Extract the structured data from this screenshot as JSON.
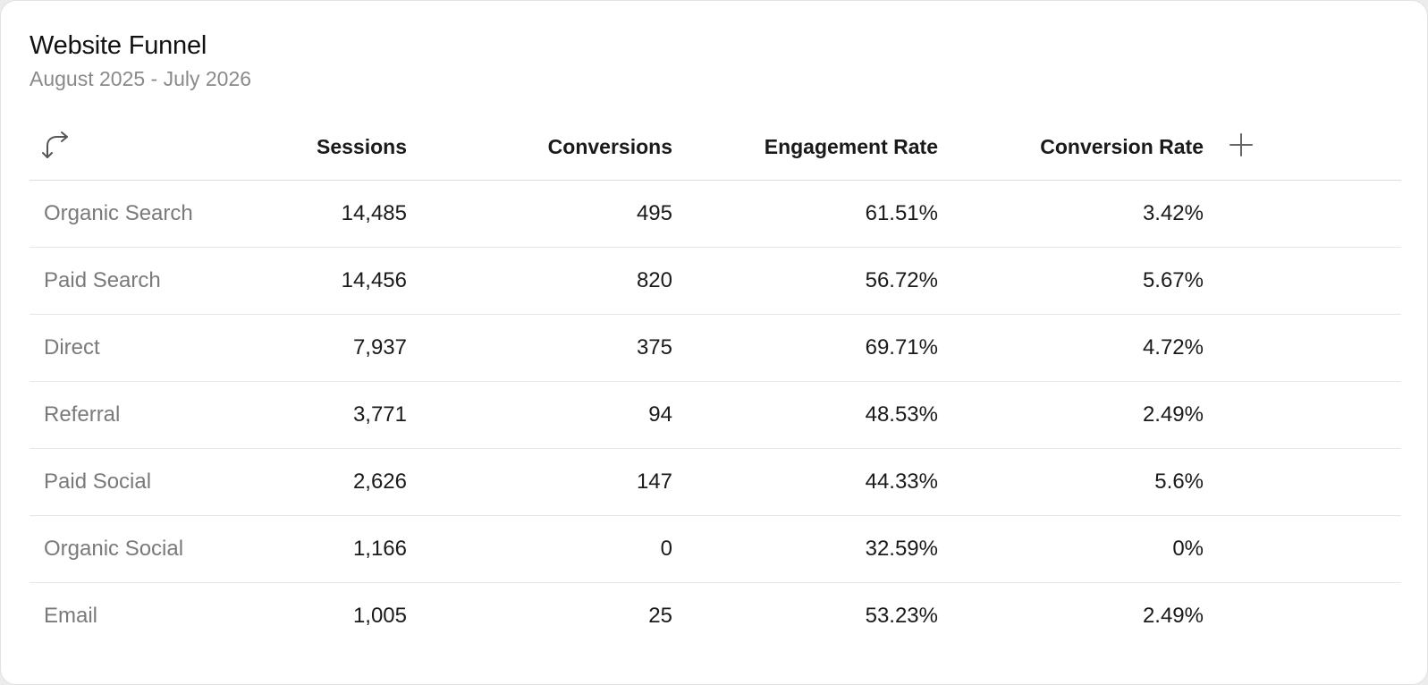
{
  "header": {
    "title": "Website Funnel",
    "subtitle": "August 2025 - July 2026"
  },
  "table": {
    "corner_icon": "swap-arrows-icon",
    "add_icon": "plus-icon",
    "columns": [
      "Sessions",
      "Conversions",
      "Engagement Rate",
      "Conversion Rate"
    ],
    "rows": [
      {
        "label": "Organic Search",
        "sessions": "14,485",
        "conversions": "495",
        "engagement_rate": "61.51%",
        "conversion_rate": "3.42%"
      },
      {
        "label": "Paid Search",
        "sessions": "14,456",
        "conversions": "820",
        "engagement_rate": "56.72%",
        "conversion_rate": "5.67%"
      },
      {
        "label": "Direct",
        "sessions": "7,937",
        "conversions": "375",
        "engagement_rate": "69.71%",
        "conversion_rate": "4.72%"
      },
      {
        "label": "Referral",
        "sessions": "3,771",
        "conversions": "94",
        "engagement_rate": "48.53%",
        "conversion_rate": "2.49%"
      },
      {
        "label": "Paid Social",
        "sessions": "2,626",
        "conversions": "147",
        "engagement_rate": "44.33%",
        "conversion_rate": "5.6%"
      },
      {
        "label": "Organic Social",
        "sessions": "1,166",
        "conversions": "0",
        "engagement_rate": "32.59%",
        "conversion_rate": "0%"
      },
      {
        "label": "Email",
        "sessions": "1,005",
        "conversions": "25",
        "engagement_rate": "53.23%",
        "conversion_rate": "2.49%"
      }
    ]
  }
}
